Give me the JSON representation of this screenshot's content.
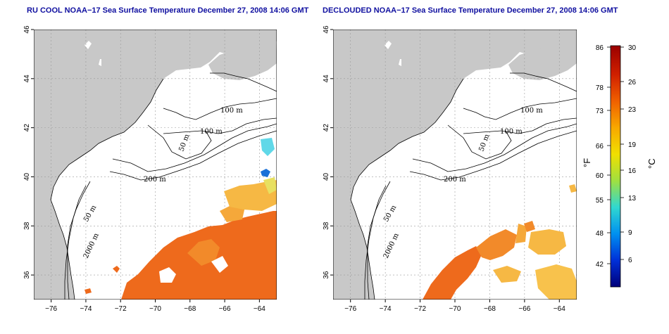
{
  "titles": {
    "left": "RU COOL NOAA−17 Sea Surface Temperature December 27, 2008 14:06 GMT",
    "right": "DECLOUDED NOAA−17 Sea Surface Temperature December 27, 2008 14:06 GMT"
  },
  "map": {
    "lon_ticks": [
      "−76",
      "−74",
      "−72",
      "−70",
      "−68",
      "−66",
      "−64"
    ],
    "lat_ticks": [
      "46",
      "44",
      "42",
      "40",
      "38",
      "36"
    ],
    "lon_range": [
      -77,
      -63
    ],
    "lat_range": [
      35,
      46
    ],
    "land_color": "#c8c8c8",
    "ocean_color": "#ffffff",
    "grid": "dotted",
    "contour_labels": {
      "c100a": "100 m",
      "c100b": "100 m",
      "c50a": "50 m",
      "c200": "200 m",
      "c50b": "50 m",
      "c2000": "2000 m"
    }
  },
  "colorbar": {
    "f_ticks": [
      "86",
      "78",
      "73",
      "66",
      "60",
      "55",
      "48",
      "42"
    ],
    "c_ticks": [
      "30",
      "26",
      "23",
      "19",
      "16",
      "13",
      "9",
      "6"
    ],
    "f_label": "°F",
    "c_label": "°C",
    "colors": [
      "#00007a",
      "#0030d8",
      "#0090f0",
      "#30d8d0",
      "#a0e040",
      "#f0e000",
      "#f8a800",
      "#f06000",
      "#d02000",
      "#9a0000"
    ]
  }
}
